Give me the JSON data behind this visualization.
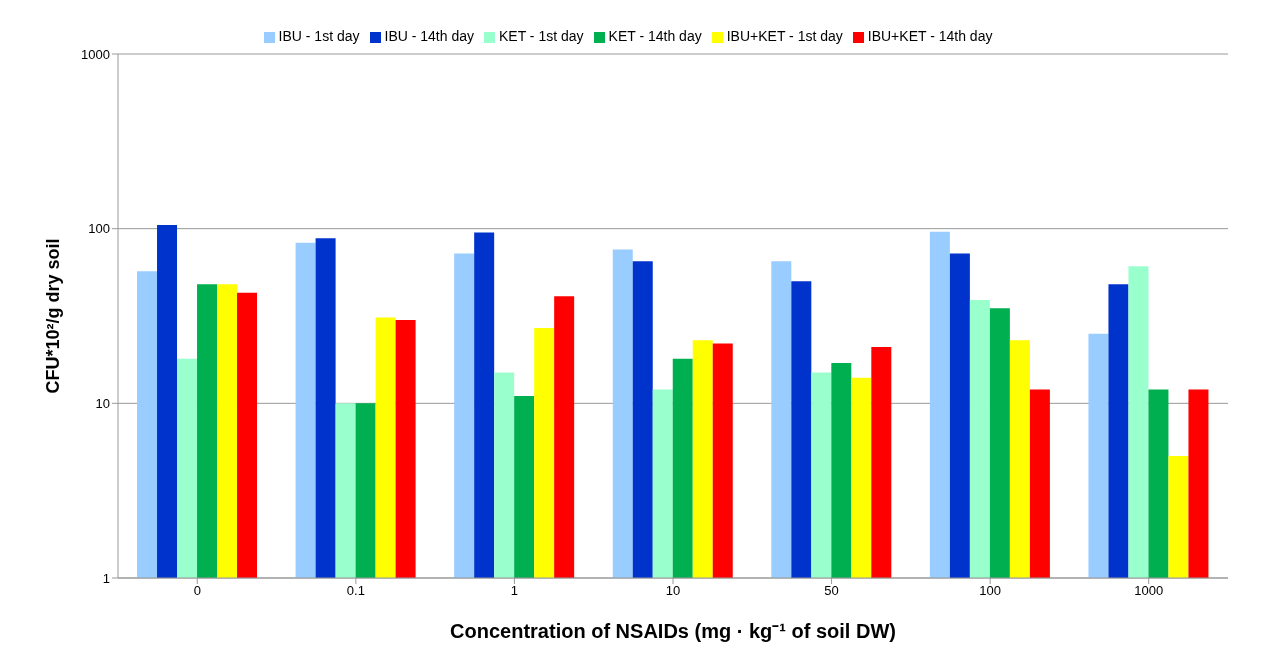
{
  "chart_data": {
    "type": "bar",
    "xlabel": "Concentration of NSAIDs (mg · kg⁻¹ of soil DW)",
    "ylabel": "CFU*10²/g dry soil",
    "categories": [
      "0",
      "0.1",
      "1",
      "10",
      "50",
      "100",
      "1000"
    ],
    "series": [
      {
        "name": "IBU - 1st day",
        "color": "#99ccff",
        "values": [
          57,
          83,
          72,
          76,
          65,
          96,
          25
        ]
      },
      {
        "name": "IBU - 14th day",
        "color": "#0033cc",
        "values": [
          105,
          88,
          95,
          65,
          50,
          72,
          48
        ]
      },
      {
        "name": "KET - 1st day",
        "color": "#99ffcc",
        "values": [
          18,
          10,
          15,
          12,
          15,
          39,
          61
        ]
      },
      {
        "name": "KET - 14th day",
        "color": "#00b050",
        "values": [
          48,
          10,
          11,
          18,
          17,
          35,
          12
        ]
      },
      {
        "name": "IBU+KET - 1st day",
        "color": "#ffff00",
        "values": [
          48,
          31,
          27,
          23,
          14,
          23,
          5
        ]
      },
      {
        "name": "IBU+KET - 14th day",
        "color": "#ff0000",
        "values": [
          43,
          30,
          41,
          22,
          21,
          12,
          12
        ]
      }
    ],
    "log": true,
    "ylim": [
      1,
      1000
    ],
    "yticks": [
      1,
      10,
      100,
      1000
    ],
    "grid": "y",
    "legend": "top"
  }
}
